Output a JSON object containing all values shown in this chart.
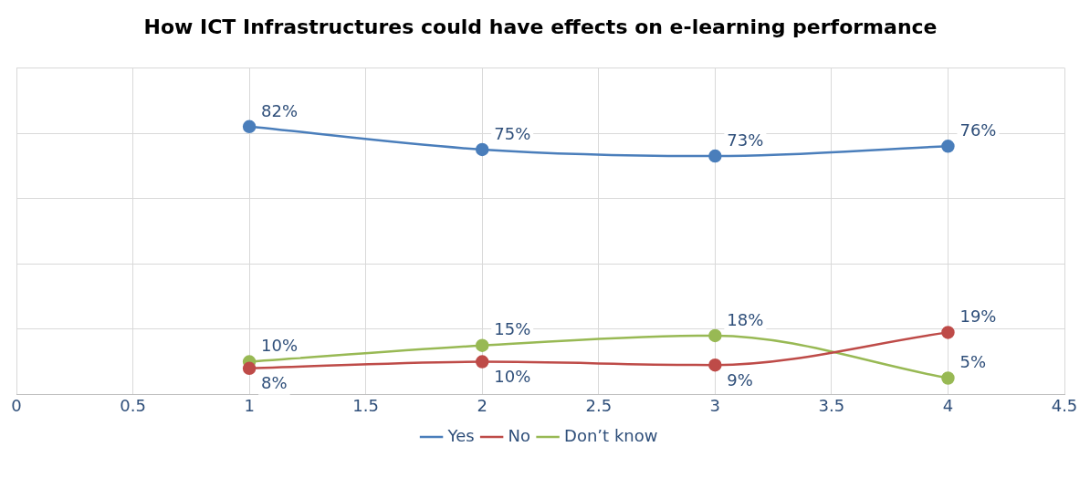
{
  "chart_data": {
    "type": "line",
    "title": "How ICT Infrastructures could have effects on e-learning performance",
    "x": [
      1,
      2,
      3,
      4
    ],
    "series": [
      {
        "name": "Yes",
        "color": "#4a7ebb",
        "values": [
          82,
          75,
          73,
          76
        ],
        "value_labels": [
          "82%",
          "75%",
          "73%",
          "76%"
        ]
      },
      {
        "name": "No",
        "color": "#be4b48",
        "values": [
          8,
          10,
          9,
          19
        ],
        "value_labels": [
          "8%",
          "10%",
          "9%",
          "19%"
        ]
      },
      {
        "name": "Don’t know",
        "color": "#98b954",
        "values": [
          10,
          15,
          18,
          5
        ],
        "value_labels": [
          "10%",
          "15%",
          "18%",
          "5%"
        ]
      }
    ],
    "xlim": [
      0,
      4.5
    ],
    "xticks": [
      0,
      0.5,
      1,
      1.5,
      2,
      2.5,
      3,
      3.5,
      4,
      4.5
    ],
    "ylim": [
      0,
      100
    ],
    "yticks": [
      {
        "value": 0,
        "label": null
      },
      {
        "value": 20,
        "label": null
      },
      {
        "value": 40,
        "label": null
      },
      {
        "value": 60,
        "label": null
      },
      {
        "value": 80,
        "label": null
      },
      {
        "value": 100,
        "label": null
      }
    ],
    "tick_labels": "x",
    "grid": true,
    "legend": "bottom",
    "marker": "circle",
    "line_style": "solid"
  }
}
